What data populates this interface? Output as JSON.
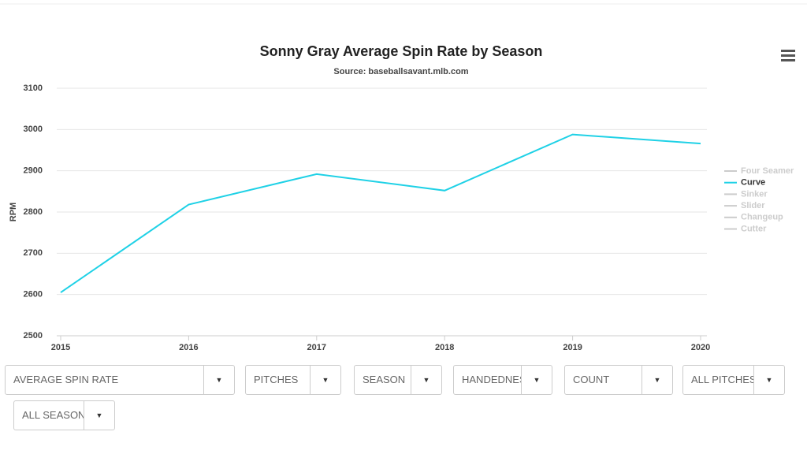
{
  "chart_data": {
    "type": "line",
    "title": "Sonny Gray Average Spin Rate by Season",
    "subtitle": "Source: baseballsavant.mlb.com",
    "y_label": "RPM",
    "x": [
      2015,
      2016,
      2017,
      2018,
      2019,
      2020
    ],
    "xlim": [
      2015,
      2020
    ],
    "xticks": [
      2015,
      2016,
      2017,
      2018,
      2019,
      2020
    ],
    "ylim": [
      2500,
      3100
    ],
    "yticks": [
      2500,
      2600,
      2700,
      2800,
      2900,
      3000,
      3100
    ],
    "grid": true,
    "legend_position": "right",
    "series": [
      {
        "name": "Four Seamer",
        "color": "#cccccc",
        "visible": false,
        "values": [
          null,
          null,
          null,
          null,
          null,
          null
        ]
      },
      {
        "name": "Curve",
        "color": "#1fd1e6",
        "visible": true,
        "values": [
          2605,
          2818,
          2892,
          2852,
          2988,
          2966
        ]
      },
      {
        "name": "Sinker",
        "color": "#cccccc",
        "visible": false,
        "values": [
          null,
          null,
          null,
          null,
          null,
          null
        ]
      },
      {
        "name": "Slider",
        "color": "#cccccc",
        "visible": false,
        "values": [
          null,
          null,
          null,
          null,
          null,
          null
        ]
      },
      {
        "name": "Changeup",
        "color": "#cccccc",
        "visible": false,
        "values": [
          null,
          null,
          null,
          null,
          null,
          null
        ]
      },
      {
        "name": "Cutter",
        "color": "#cccccc",
        "visible": false,
        "values": [
          null,
          null,
          null,
          null,
          null,
          null
        ]
      }
    ]
  },
  "controls": [
    "AVERAGE SPIN RATE",
    "PITCHES",
    "SEASON",
    "HANDEDNESS",
    "COUNT",
    "ALL PITCHES",
    "ALL SEASONS"
  ]
}
